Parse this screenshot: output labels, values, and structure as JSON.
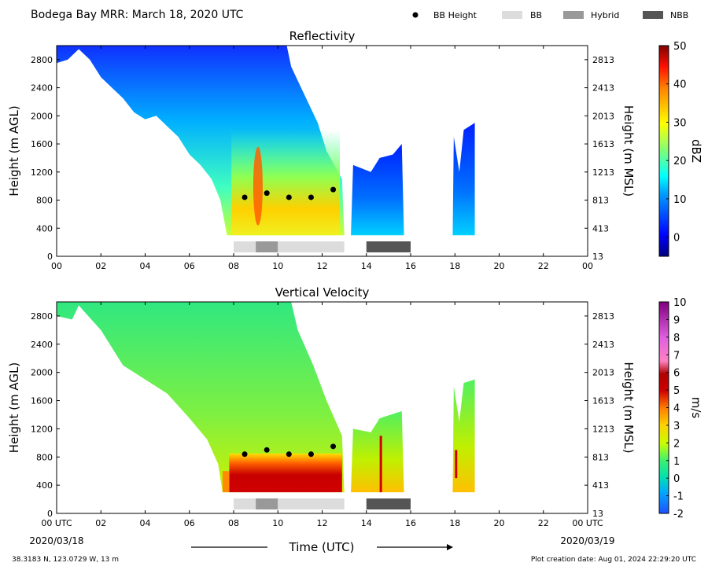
{
  "header": {
    "title": "Bodega Bay MRR:  March 18, 2020 UTC",
    "legend": [
      {
        "label": "BB Height",
        "kind": "dot",
        "color": "#000000"
      },
      {
        "label": "BB",
        "kind": "box",
        "color": "#dcdcdc"
      },
      {
        "label": "Hybrid",
        "kind": "box",
        "color": "#999999"
      },
      {
        "label": "NBB",
        "kind": "box",
        "color": "#555555"
      }
    ]
  },
  "footer": {
    "location": "38.3183 N, 123.0729 W, 13 m",
    "created": "Plot creation date: Aug 01, 2024 22:29:20 UTC",
    "start_date": "2020/03/18",
    "end_date": "2020/03/19",
    "xlabel": "Time (UTC)"
  },
  "chart_data": [
    {
      "type": "heatmap",
      "title": "Reflectivity",
      "ylabel": "Height (m AGL)",
      "y2label": "Height (m MSL)",
      "colorbar_label": "dBZ",
      "colorbar_range": [
        -5,
        50
      ],
      "colorbar_ticks": [
        "0",
        "10",
        "20",
        "30",
        "40",
        "50"
      ],
      "colorbar_tick_values": [
        0,
        10,
        20,
        30,
        40,
        50
      ],
      "xlim": [
        0,
        24
      ],
      "ylim": [
        0,
        3000
      ],
      "x_ticks": [
        "00",
        "02",
        "04",
        "06",
        "08",
        "10",
        "12",
        "14",
        "16",
        "18",
        "20",
        "22",
        "00"
      ],
      "y_ticks": [
        "0",
        "400",
        "800",
        "1200",
        "1600",
        "2000",
        "2400",
        "2800"
      ],
      "y_tick_values": [
        0,
        400,
        800,
        1200,
        1600,
        2000,
        2400,
        2800
      ],
      "y2_ticks": [
        "13",
        "413",
        "813",
        "1213",
        "1613",
        "2013",
        "2413",
        "2813"
      ],
      "bb_height_points": [
        {
          "x": 8.5,
          "y": 840
        },
        {
          "x": 9.5,
          "y": 900
        },
        {
          "x": 10.5,
          "y": 840
        },
        {
          "x": 11.5,
          "y": 840
        },
        {
          "x": 12.5,
          "y": 950
        }
      ],
      "bb_type_segments": [
        {
          "start": 8.0,
          "end": 9.0,
          "type": "BB",
          "color": "#dcdcdc"
        },
        {
          "start": 9.0,
          "end": 10.0,
          "type": "Hybrid",
          "color": "#999999"
        },
        {
          "start": 10.0,
          "end": 13.0,
          "type": "BB",
          "color": "#dcdcdc"
        },
        {
          "start": 14.0,
          "end": 16.0,
          "type": "NBB",
          "color": "#555555"
        }
      ],
      "echo_regions": [
        {
          "start": 0.0,
          "end": 13.0,
          "bottom": 300,
          "top": 3000,
          "typical_value": 10,
          "peak_value": 33
        },
        {
          "start": 13.3,
          "end": 15.7,
          "bottom": 300,
          "top": 1600,
          "typical_value": 5
        },
        {
          "start": 17.9,
          "end": 18.9,
          "bottom": 300,
          "top": 1900,
          "typical_value": 4
        }
      ]
    },
    {
      "type": "heatmap",
      "title": "Vertical Velocity",
      "ylabel": "Height (m AGL)",
      "y2label": "Height (m MSL)",
      "colorbar_label": "m/s",
      "colorbar_range": [
        -2,
        10
      ],
      "colorbar_ticks": [
        "-2",
        "-1",
        "0",
        "1",
        "2",
        "3",
        "4",
        "5",
        "6",
        "7",
        "8",
        "9",
        "10"
      ],
      "colorbar_tick_values": [
        -2,
        -1,
        0,
        1,
        2,
        3,
        4,
        5,
        6,
        7,
        8,
        9,
        10
      ],
      "xlim": [
        0,
        24
      ],
      "ylim": [
        0,
        3000
      ],
      "x_ticks": [
        "00 UTC",
        "02",
        "04",
        "06",
        "08",
        "10",
        "12",
        "14",
        "16",
        "18",
        "20",
        "22",
        "00 UTC"
      ],
      "y_ticks": [
        "0",
        "400",
        "800",
        "1200",
        "1600",
        "2000",
        "2400",
        "2800"
      ],
      "y_tick_values": [
        0,
        400,
        800,
        1200,
        1600,
        2000,
        2400,
        2800
      ],
      "y2_ticks": [
        "13",
        "413",
        "813",
        "1213",
        "1613",
        "2013",
        "2413",
        "2813"
      ],
      "bb_height_points": [
        {
          "x": 8.5,
          "y": 840
        },
        {
          "x": 9.5,
          "y": 900
        },
        {
          "x": 10.5,
          "y": 840
        },
        {
          "x": 11.5,
          "y": 840
        },
        {
          "x": 12.5,
          "y": 950
        }
      ],
      "bb_type_segments": [
        {
          "start": 8.0,
          "end": 9.0,
          "type": "BB",
          "color": "#dcdcdc"
        },
        {
          "start": 9.0,
          "end": 10.0,
          "type": "Hybrid",
          "color": "#999999"
        },
        {
          "start": 10.0,
          "end": 13.0,
          "type": "BB",
          "color": "#dcdcdc"
        },
        {
          "start": 14.0,
          "end": 16.0,
          "type": "NBB",
          "color": "#555555"
        }
      ],
      "echo_regions": [
        {
          "start": 0.0,
          "end": 13.0,
          "bottom": 300,
          "top": 3000,
          "typical_value": 1,
          "peak_value": 6
        },
        {
          "start": 13.3,
          "end": 15.7,
          "bottom": 300,
          "top": 1450,
          "typical_value": 2
        },
        {
          "start": 17.9,
          "end": 18.9,
          "bottom": 300,
          "top": 1900,
          "typical_value": 2
        }
      ]
    }
  ]
}
